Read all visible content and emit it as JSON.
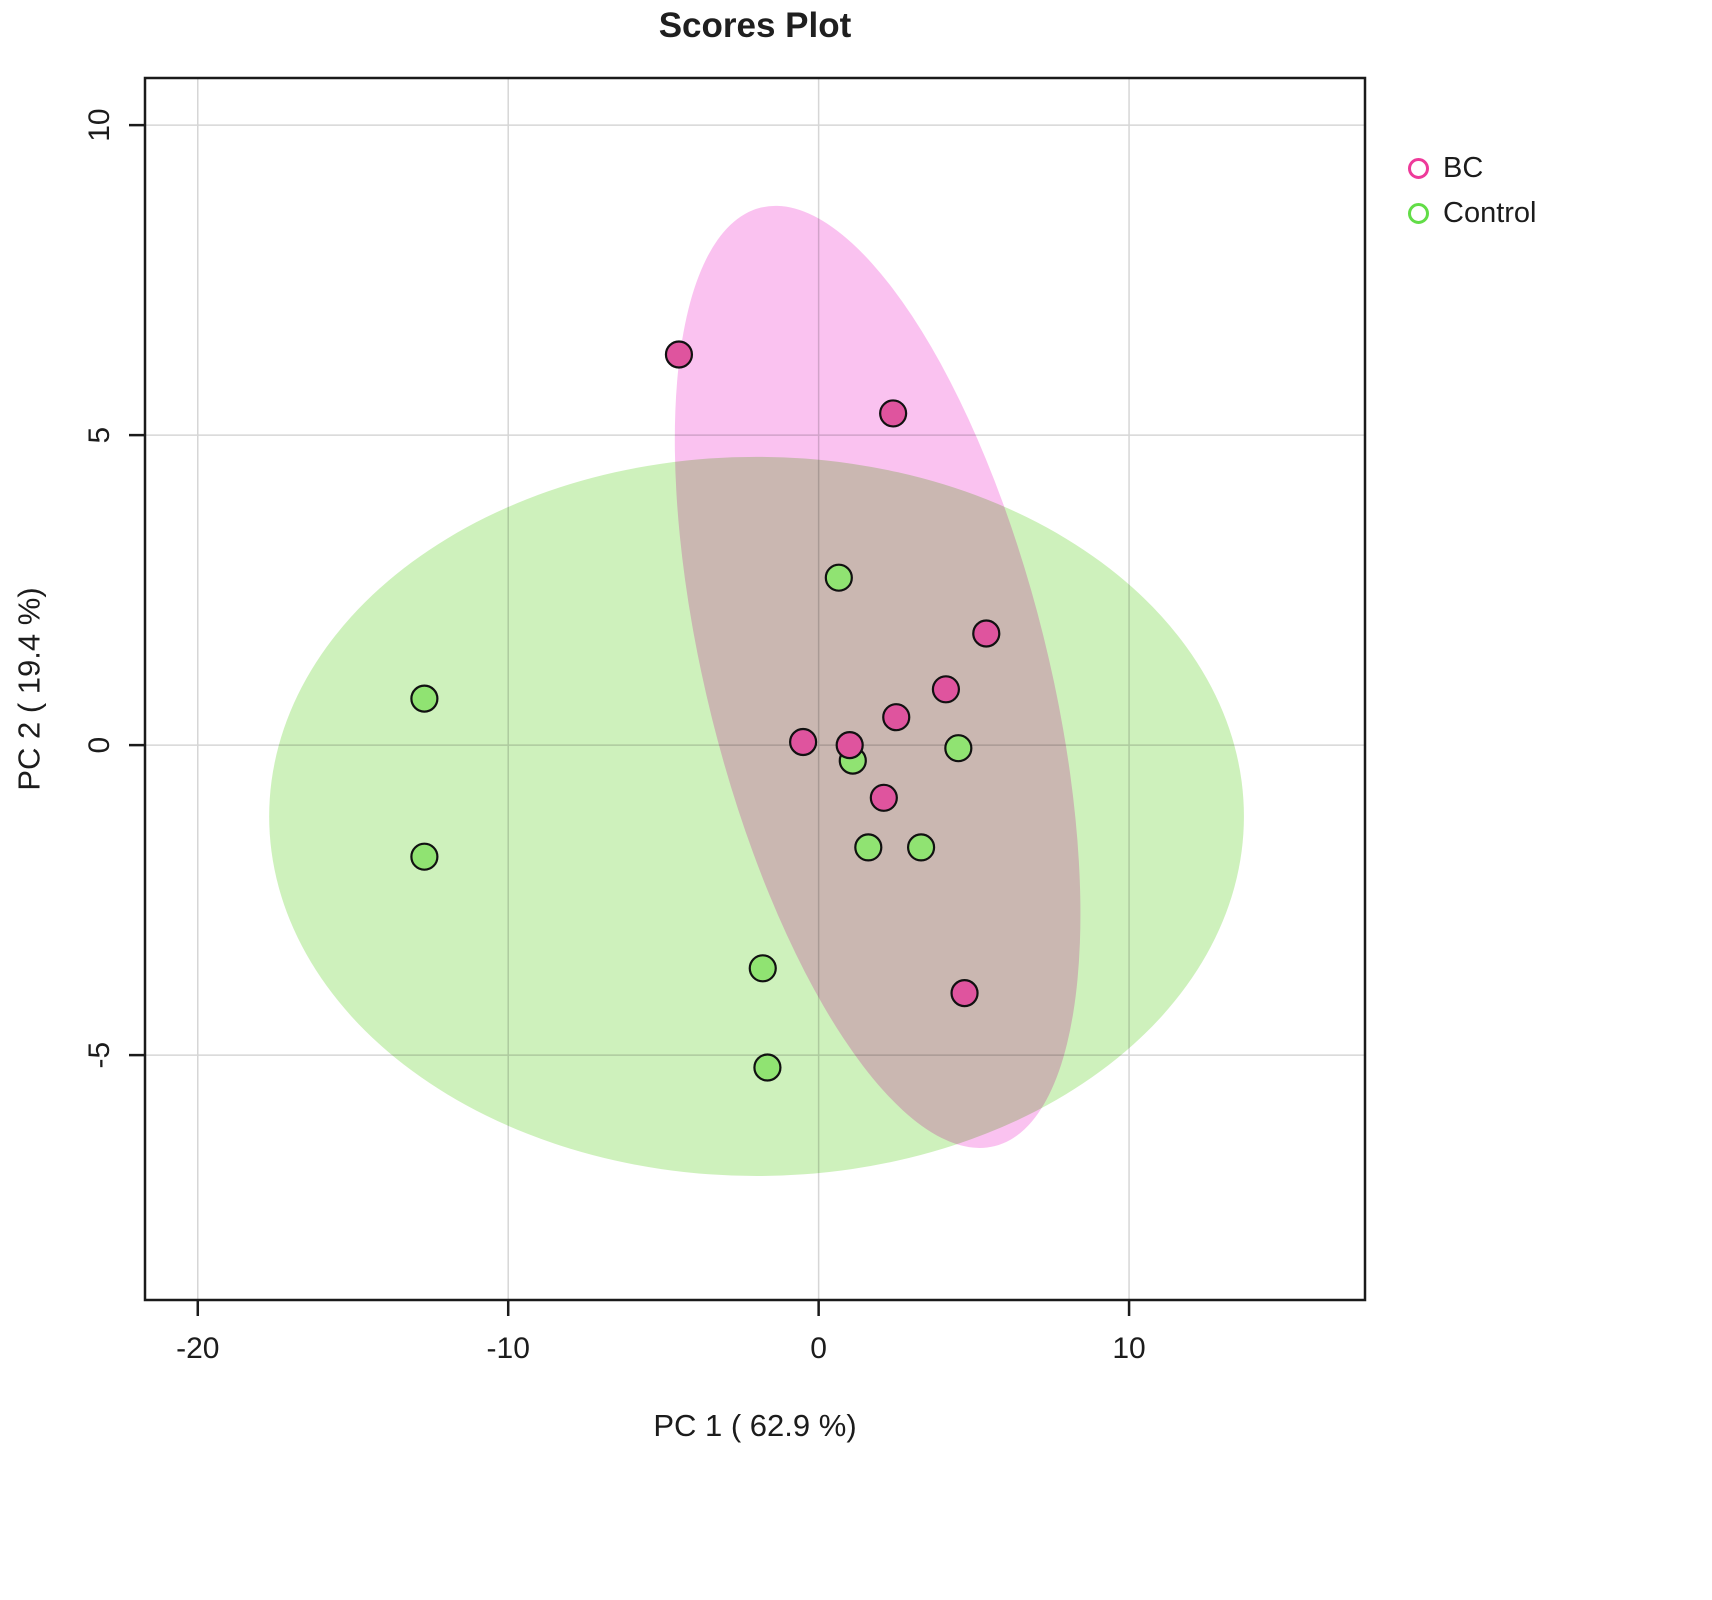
{
  "title": "Scores Plot",
  "legend": [
    {
      "label": "BC",
      "color": "#ee3a9a"
    },
    {
      "label": "Control",
      "color": "#62dd47"
    }
  ],
  "chart_data": {
    "type": "scatter",
    "title": "Scores Plot",
    "xlabel": "PC 1 ( 62.9 %)",
    "ylabel": "PC 2 ( 19.4 %)",
    "xlim": [
      -21.7,
      17.6
    ],
    "ylim": [
      -8.95,
      10.76
    ],
    "xticks": [
      -20,
      -10,
      0,
      10
    ],
    "yticks": [
      -5,
      0,
      5,
      10
    ],
    "grid": true,
    "legend_position": "right",
    "series": [
      {
        "name": "BC",
        "marker_fill": "#df549e",
        "marker_stroke": "#111111",
        "points": [
          [
            -4.5,
            6.3
          ],
          [
            2.4,
            5.35
          ],
          [
            5.4,
            1.8
          ],
          [
            4.1,
            0.9
          ],
          [
            2.5,
            0.45
          ],
          [
            -0.5,
            0.05
          ],
          [
            1.0,
            0.0
          ],
          [
            2.1,
            -0.85
          ],
          [
            4.7,
            -4.0
          ]
        ]
      },
      {
        "name": "Control",
        "marker_fill": "#90e372",
        "marker_stroke": "#111111",
        "points": [
          [
            0.65,
            2.7
          ],
          [
            -12.7,
            0.75
          ],
          [
            4.5,
            -0.05
          ],
          [
            1.1,
            -0.25
          ],
          [
            -12.7,
            -1.8
          ],
          [
            1.6,
            -1.65
          ],
          [
            3.3,
            -1.65
          ],
          [
            -1.8,
            -3.6
          ],
          [
            -1.65,
            -5.2
          ]
        ]
      }
    ],
    "ellipses": [
      {
        "series": "Control",
        "cx": -2.0,
        "cy": -1.15,
        "rx": 15.7,
        "ry": 5.8,
        "rotation_deg": 0,
        "fill": "#c9efb5"
      },
      {
        "series": "BC",
        "cx": 1.9,
        "cy": 1.1,
        "rx": 5.5,
        "ry": 7.8,
        "rotation_deg": -14,
        "fill": "#f9bbee"
      }
    ]
  }
}
